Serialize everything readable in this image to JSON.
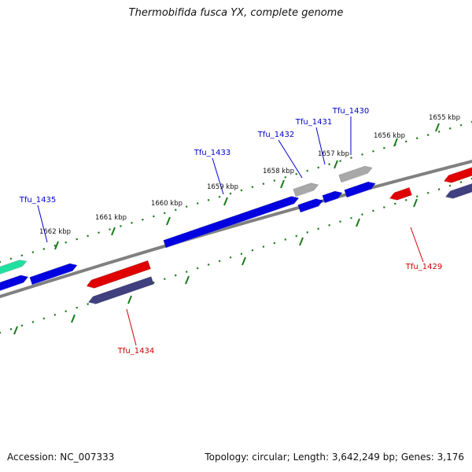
{
  "title": "Thermobifida fusca YX, complete genome",
  "footer": {
    "accession_label": "Accession:",
    "accession": "NC_007333",
    "topology_label": "Topology:",
    "topology": "circular",
    "length_label": "Length:",
    "length": "3,642,249 bp",
    "genes_label": "Genes:",
    "genes": "3,176"
  },
  "ticks": [
    "1655 kbp",
    "1656 kbp",
    "1657 kbp",
    "1658 kbp",
    "1659 kbp",
    "1660 kbp",
    "1661 kbp",
    "1662 kbp"
  ],
  "genes_labeled": [
    {
      "name": "Tfu_1430",
      "strand": "forward"
    },
    {
      "name": "Tfu_1431",
      "strand": "forward"
    },
    {
      "name": "Tfu_1432",
      "strand": "forward"
    },
    {
      "name": "Tfu_1433",
      "strand": "forward"
    },
    {
      "name": "Tfu_1435",
      "strand": "forward"
    },
    {
      "name": "Tfu_1429",
      "strand": "reverse"
    },
    {
      "name": "Tfu_1434",
      "strand": "reverse"
    }
  ],
  "colors": {
    "forward_label": "#0000cc",
    "reverse_label": "#cc0000",
    "cds_forward": "#0000e0",
    "cds_reverse": "#e00000",
    "other_forward": "#a8a8a8",
    "rna_forward": "#20e0a0",
    "other_reverse": "#404080",
    "backbone": "#808080",
    "tick": "#1a7a1a",
    "text": "#111111"
  }
}
